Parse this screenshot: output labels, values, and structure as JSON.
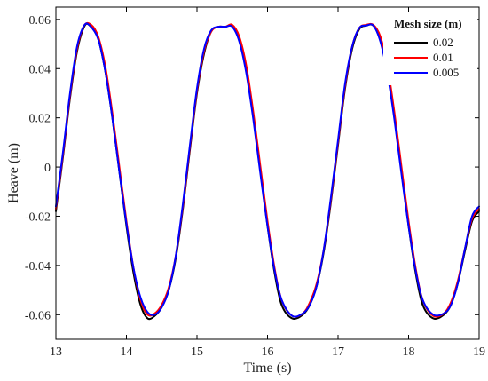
{
  "chart_data": {
    "type": "line",
    "xlabel": "Time (s)",
    "ylabel": "Heave (m)",
    "xlim": [
      13,
      19
    ],
    "ylim": [
      -0.07,
      0.065
    ],
    "x_ticks": [
      "13",
      "14",
      "15",
      "16",
      "17",
      "18",
      "19"
    ],
    "y_ticks": [
      "-0.06",
      "-0.04",
      "-0.02",
      "0",
      "0.02",
      "0.04",
      "0.06"
    ],
    "grid": false,
    "legend": {
      "title": "Mesh size (m)",
      "placement": "top-right"
    },
    "series": [
      {
        "name": "0.02",
        "color": "#000000",
        "points": [
          [
            13.0,
            -0.018
          ],
          [
            13.1,
            0.004
          ],
          [
            13.2,
            0.028
          ],
          [
            13.3,
            0.047
          ],
          [
            13.4,
            0.057
          ],
          [
            13.48,
            0.0575
          ],
          [
            13.6,
            0.052
          ],
          [
            13.7,
            0.039
          ],
          [
            13.8,
            0.02
          ],
          [
            13.9,
            -0.002
          ],
          [
            14.0,
            -0.024
          ],
          [
            14.1,
            -0.043
          ],
          [
            14.2,
            -0.056
          ],
          [
            14.3,
            -0.0615
          ],
          [
            14.4,
            -0.0605
          ],
          [
            14.5,
            -0.057
          ],
          [
            14.6,
            -0.05
          ],
          [
            14.7,
            -0.037
          ],
          [
            14.8,
            -0.017
          ],
          [
            14.9,
            0.007
          ],
          [
            15.0,
            0.03
          ],
          [
            15.1,
            0.046
          ],
          [
            15.2,
            0.055
          ],
          [
            15.3,
            0.057
          ],
          [
            15.4,
            0.057
          ],
          [
            15.5,
            0.0575
          ],
          [
            15.6,
            0.052
          ],
          [
            15.7,
            0.039
          ],
          [
            15.8,
            0.02
          ],
          [
            15.9,
            -0.002
          ],
          [
            16.0,
            -0.024
          ],
          [
            16.1,
            -0.043
          ],
          [
            16.2,
            -0.056
          ],
          [
            16.35,
            -0.0615
          ],
          [
            16.5,
            -0.06
          ],
          [
            16.6,
            -0.056
          ],
          [
            16.7,
            -0.048
          ],
          [
            16.8,
            -0.034
          ],
          [
            16.9,
            -0.014
          ],
          [
            17.0,
            0.009
          ],
          [
            17.1,
            0.032
          ],
          [
            17.2,
            0.048
          ],
          [
            17.3,
            0.056
          ],
          [
            17.4,
            0.0575
          ],
          [
            17.5,
            0.0575
          ],
          [
            17.6,
            0.052
          ],
          [
            17.7,
            0.039
          ],
          [
            17.8,
            0.02
          ],
          [
            17.9,
            -0.002
          ],
          [
            18.0,
            -0.024
          ],
          [
            18.1,
            -0.043
          ],
          [
            18.2,
            -0.056
          ],
          [
            18.35,
            -0.0615
          ],
          [
            18.5,
            -0.06
          ],
          [
            18.6,
            -0.056
          ],
          [
            18.7,
            -0.047
          ],
          [
            18.8,
            -0.034
          ],
          [
            18.9,
            -0.022
          ],
          [
            19.0,
            -0.018
          ]
        ]
      },
      {
        "name": "0.01",
        "color": "#ff0000",
        "points": [
          [
            13.0,
            -0.017
          ],
          [
            13.1,
            0.005
          ],
          [
            13.2,
            0.029
          ],
          [
            13.3,
            0.048
          ],
          [
            13.4,
            0.0575
          ],
          [
            13.5,
            0.0578
          ],
          [
            13.6,
            0.053
          ],
          [
            13.7,
            0.041
          ],
          [
            13.8,
            0.022
          ],
          [
            13.9,
            0.0
          ],
          [
            14.0,
            -0.022
          ],
          [
            14.1,
            -0.041
          ],
          [
            14.2,
            -0.054
          ],
          [
            14.3,
            -0.06
          ],
          [
            14.4,
            -0.0595
          ],
          [
            14.5,
            -0.056
          ],
          [
            14.6,
            -0.049
          ],
          [
            14.7,
            -0.036
          ],
          [
            14.8,
            -0.016
          ],
          [
            14.9,
            0.008
          ],
          [
            15.0,
            0.031
          ],
          [
            15.1,
            0.047
          ],
          [
            15.2,
            0.055
          ],
          [
            15.3,
            0.057
          ],
          [
            15.4,
            0.057
          ],
          [
            15.5,
            0.0578
          ],
          [
            15.6,
            0.053
          ],
          [
            15.7,
            0.041
          ],
          [
            15.8,
            0.022
          ],
          [
            15.9,
            0.0
          ],
          [
            16.0,
            -0.022
          ],
          [
            16.1,
            -0.041
          ],
          [
            16.2,
            -0.054
          ],
          [
            16.35,
            -0.0605
          ],
          [
            16.5,
            -0.0595
          ],
          [
            16.6,
            -0.055
          ],
          [
            16.7,
            -0.047
          ],
          [
            16.8,
            -0.033
          ],
          [
            16.9,
            -0.013
          ],
          [
            17.0,
            0.01
          ],
          [
            17.1,
            0.033
          ],
          [
            17.2,
            0.049
          ],
          [
            17.3,
            0.0565
          ],
          [
            17.4,
            0.0578
          ],
          [
            17.5,
            0.0578
          ],
          [
            17.6,
            0.053
          ],
          [
            17.7,
            0.041
          ],
          [
            17.8,
            0.022
          ],
          [
            17.9,
            0.0
          ],
          [
            18.0,
            -0.022
          ],
          [
            18.1,
            -0.041
          ],
          [
            18.2,
            -0.054
          ],
          [
            18.35,
            -0.0605
          ],
          [
            18.5,
            -0.0595
          ],
          [
            18.6,
            -0.055
          ],
          [
            18.7,
            -0.046
          ],
          [
            18.8,
            -0.033
          ],
          [
            18.9,
            -0.021
          ],
          [
            19.0,
            -0.017
          ]
        ]
      },
      {
        "name": "0.005",
        "color": "#0000ff",
        "points": [
          [
            13.0,
            -0.016
          ],
          [
            13.1,
            0.006
          ],
          [
            13.2,
            0.03
          ],
          [
            13.3,
            0.049
          ],
          [
            13.4,
            0.0575
          ],
          [
            13.48,
            0.0575
          ],
          [
            13.6,
            0.052
          ],
          [
            13.7,
            0.039
          ],
          [
            13.8,
            0.02
          ],
          [
            13.9,
            -0.002
          ],
          [
            14.0,
            -0.023
          ],
          [
            14.1,
            -0.041
          ],
          [
            14.2,
            -0.053
          ],
          [
            14.3,
            -0.059
          ],
          [
            14.4,
            -0.06
          ],
          [
            14.5,
            -0.057
          ],
          [
            14.6,
            -0.05
          ],
          [
            14.7,
            -0.036
          ],
          [
            14.8,
            -0.015
          ],
          [
            14.9,
            0.009
          ],
          [
            15.0,
            0.032
          ],
          [
            15.1,
            0.048
          ],
          [
            15.2,
            0.0555
          ],
          [
            15.3,
            0.057
          ],
          [
            15.4,
            0.057
          ],
          [
            15.5,
            0.057
          ],
          [
            15.6,
            0.051
          ],
          [
            15.7,
            0.038
          ],
          [
            15.8,
            0.019
          ],
          [
            15.9,
            -0.003
          ],
          [
            16.0,
            -0.024
          ],
          [
            16.1,
            -0.042
          ],
          [
            16.2,
            -0.054
          ],
          [
            16.35,
            -0.0605
          ],
          [
            16.5,
            -0.0595
          ],
          [
            16.6,
            -0.056
          ],
          [
            16.7,
            -0.048
          ],
          [
            16.8,
            -0.033
          ],
          [
            16.9,
            -0.012
          ],
          [
            17.0,
            0.011
          ],
          [
            17.1,
            0.034
          ],
          [
            17.2,
            0.049
          ],
          [
            17.3,
            0.0565
          ],
          [
            17.4,
            0.0575
          ],
          [
            17.5,
            0.0575
          ],
          [
            17.6,
            0.051
          ],
          [
            17.7,
            0.038
          ],
          [
            17.8,
            0.019
          ],
          [
            17.9,
            -0.003
          ],
          [
            18.0,
            -0.024
          ],
          [
            18.1,
            -0.042
          ],
          [
            18.2,
            -0.054
          ],
          [
            18.35,
            -0.06
          ],
          [
            18.5,
            -0.0595
          ],
          [
            18.6,
            -0.056
          ],
          [
            18.7,
            -0.047
          ],
          [
            18.8,
            -0.033
          ],
          [
            18.9,
            -0.02
          ],
          [
            19.0,
            -0.016
          ]
        ]
      }
    ]
  }
}
